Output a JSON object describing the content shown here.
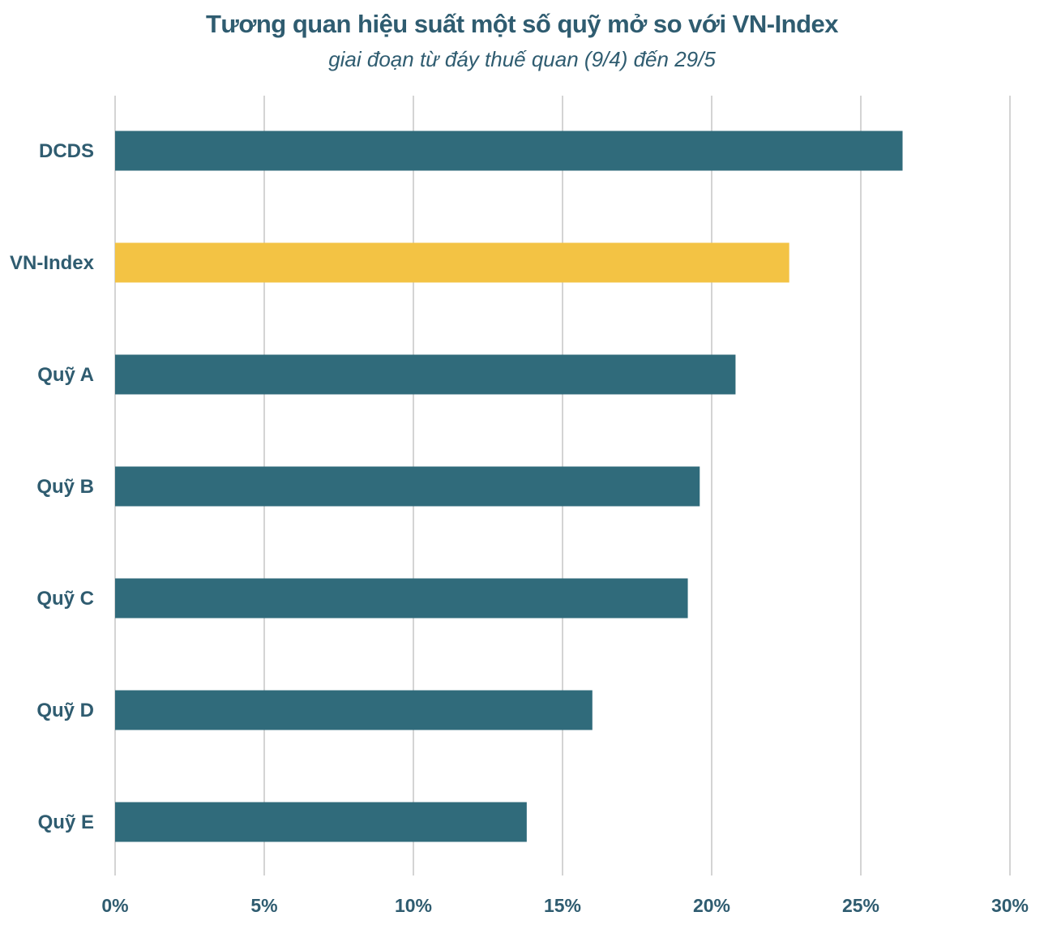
{
  "chart_data": {
    "type": "bar",
    "orientation": "horizontal",
    "title": "Tương quan hiệu suất một số quỹ mở so với VN-Index",
    "subtitle": "giai đoạn từ đáy thuế quan (9/4) đến 29/5",
    "categories": [
      "DCDS",
      "VN-Index",
      "Quỹ A",
      "Quỹ B",
      "Quỹ C",
      "Quỹ D",
      "Quỹ E"
    ],
    "values": [
      26.4,
      22.6,
      20.8,
      19.6,
      19.2,
      16.0,
      13.8
    ],
    "unit": "%",
    "xlim": [
      0,
      30
    ],
    "x_ticks": [
      0,
      5,
      10,
      15,
      20,
      25,
      30
    ],
    "x_tick_labels": [
      "0%",
      "5%",
      "10%",
      "15%",
      "20%",
      "25%",
      "30%"
    ],
    "grid": "vertical",
    "legend": "none",
    "colors": {
      "default_bar": "#306b7b",
      "highlight_bar": "#f3c344",
      "gridline": "#d4d4d4",
      "text": "#2f5c70"
    },
    "highlight_category": "VN-Index"
  }
}
